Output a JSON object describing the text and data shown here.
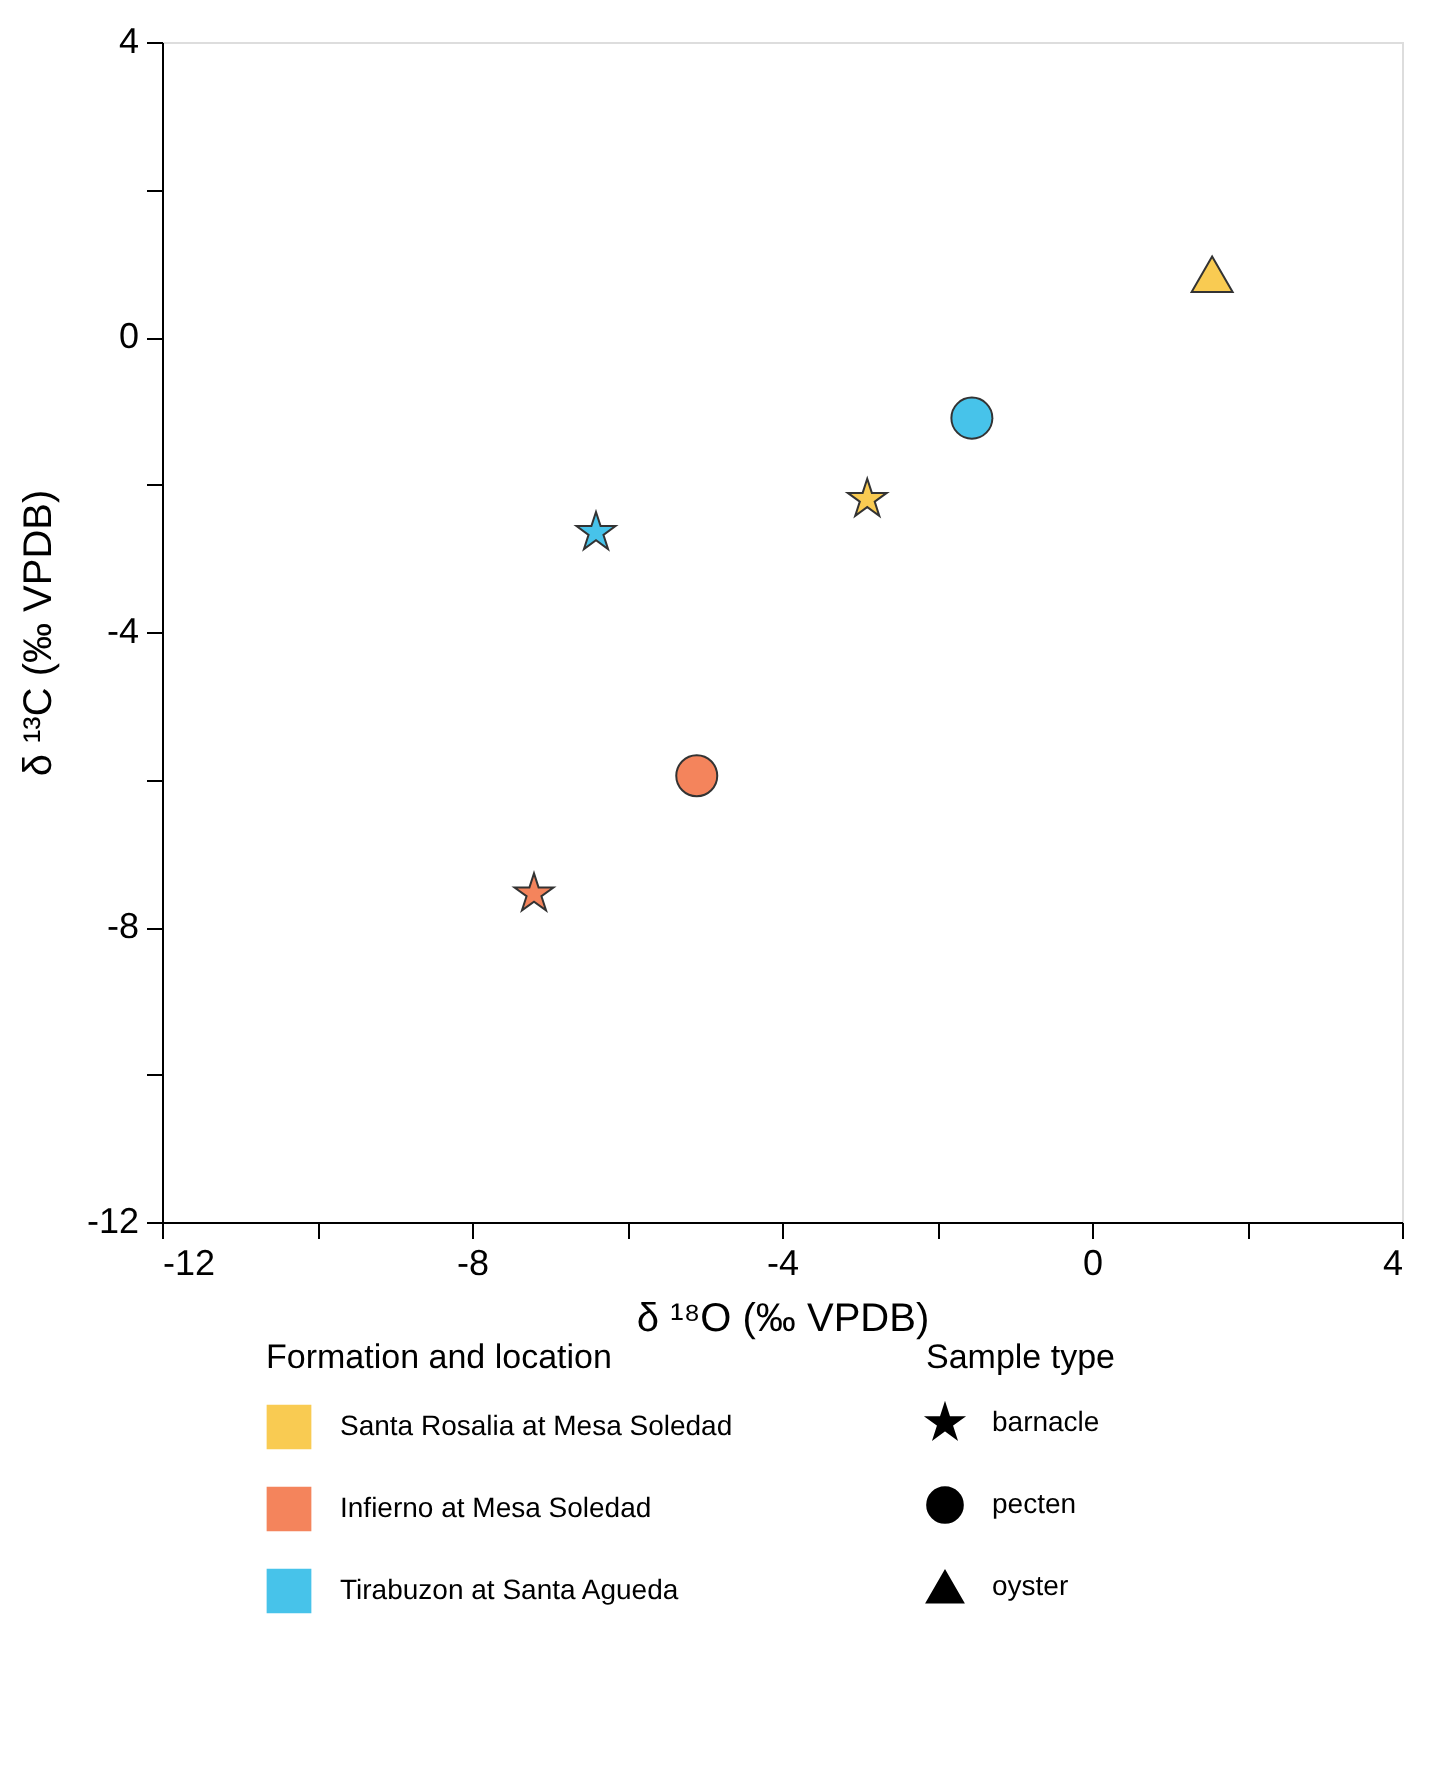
{
  "chart_data": {
    "type": "scatter",
    "xlabel": "δ ¹⁸O (‰ VPDB)",
    "ylabel": "δ ¹³C (‰ VPDB)",
    "xlim": [
      -12,
      4
    ],
    "ylim": [
      -12,
      4
    ],
    "xticks": [
      -12,
      {
        "value": -10,
        "label": null
      },
      -8,
      {
        "value": -6,
        "label": null
      },
      -4,
      {
        "value": -2,
        "label": null
      },
      0,
      {
        "value": 2,
        "label": null
      },
      4
    ],
    "yticks": [
      -12,
      {
        "value": -10,
        "label": null
      },
      -8,
      {
        "value": -6,
        "label": null
      },
      -4,
      {
        "value": -2,
        "label": null
      },
      0,
      {
        "value": 2,
        "label": null
      },
      4
    ],
    "grid": false,
    "legend": "bottom",
    "legend_title": [
      "Formation and location",
      "Sample type"
    ],
    "annotations": [
      "barnacle",
      "pecten",
      "oyster"
    ],
    "series": [
      {
        "name": "Santa Rosalia at Mesa Soledad",
        "color": "#f9cb52",
        "x": [
          -2.9,
          1.55
        ],
        "values": [
          -2.2,
          0.85
        ],
        "marker": [
          "star",
          "triangle"
        ]
      },
      {
        "name": "Infierno at Mesa Soledad",
        "color": "#f4845c",
        "x": [
          -7.2,
          -5.1
        ],
        "values": [
          -7.55,
          -5.95
        ],
        "marker": [
          "star",
          "circle"
        ]
      },
      {
        "name": "Tirabuzon at Santa Agueda",
        "color": "#47c3ea",
        "x": [
          -6.4,
          -1.55
        ],
        "values": [
          -2.65,
          -1.1
        ],
        "marker": [
          "star",
          "circle"
        ]
      }
    ]
  }
}
